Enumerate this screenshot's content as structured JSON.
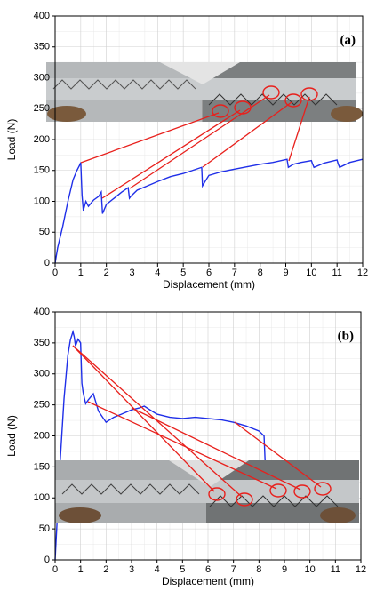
{
  "chart_data": [
    {
      "type": "line",
      "panel_label": "(a)",
      "xlabel": "Displacement (mm)",
      "ylabel": "Load (N)",
      "x": [
        0,
        0.1,
        0.3,
        0.5,
        0.7,
        0.85,
        0.95,
        1.0,
        1.05,
        1.1,
        1.2,
        1.3,
        1.5,
        1.7,
        1.8,
        1.85,
        2.0,
        2.3,
        2.6,
        2.85,
        2.9,
        2.95,
        3.2,
        3.6,
        4.0,
        4.5,
        5.0,
        5.5,
        5.72,
        5.75,
        5.85,
        6.0,
        6.5,
        7.0,
        7.5,
        8.0,
        8.5,
        9.05,
        9.1,
        9.3,
        9.6,
        10.0,
        10.05,
        10.1,
        10.5,
        11.0,
        11.05,
        11.1,
        11.5,
        12.0
      ],
      "series": [
        {
          "color": "#1f2fe8",
          "values": [
            0,
            25,
            60,
            100,
            135,
            150,
            158,
            163,
            110,
            85,
            100,
            92,
            102,
            108,
            115,
            80,
            95,
            105,
            115,
            122,
            105,
            108,
            118,
            125,
            132,
            140,
            145,
            152,
            155,
            125,
            132,
            142,
            148,
            152,
            156,
            160,
            163,
            168,
            155,
            160,
            163,
            166,
            160,
            155,
            162,
            167,
            160,
            155,
            163,
            168
          ]
        }
      ],
      "xlim": [
        0,
        12
      ],
      "ylim": [
        0,
        400
      ],
      "xticks": [
        0,
        1,
        2,
        3,
        4,
        5,
        6,
        7,
        8,
        9,
        10,
        11,
        12
      ],
      "yticks": [
        0,
        50,
        100,
        150,
        200,
        250,
        300,
        350,
        400
      ],
      "grid": true
    },
    {
      "type": "line",
      "panel_label": "(b)",
      "xlabel": "Displacement (mm)",
      "ylabel": "Load (N)",
      "x": [
        0,
        0.1,
        0.2,
        0.35,
        0.5,
        0.6,
        0.7,
        0.75,
        0.8,
        0.9,
        1.0,
        1.05,
        1.1,
        1.2,
        1.3,
        1.5,
        1.7,
        1.9,
        2.0,
        2.3,
        2.6,
        3.0,
        3.3,
        3.5,
        3.8,
        4.0,
        4.5,
        5.0,
        5.5,
        6.0,
        6.5,
        7.0,
        7.5,
        8.0,
        8.2,
        8.25
      ],
      "series": [
        {
          "color": "#1f2fe8",
          "values": [
            0,
            80,
            160,
            260,
            330,
            355,
            368,
            360,
            345,
            356,
            350,
            285,
            270,
            252,
            258,
            268,
            240,
            228,
            222,
            230,
            235,
            242,
            245,
            248,
            240,
            235,
            230,
            228,
            230,
            228,
            226,
            222,
            216,
            208,
            200,
            150
          ]
        }
      ],
      "xlim": [
        0,
        12
      ],
      "ylim": [
        0,
        400
      ],
      "xticks": [
        0,
        1,
        2,
        3,
        4,
        5,
        6,
        7,
        8,
        9,
        10,
        11,
        12
      ],
      "yticks": [
        0,
        50,
        100,
        150,
        200,
        250,
        300,
        350,
        400
      ],
      "grid": true
    }
  ]
}
